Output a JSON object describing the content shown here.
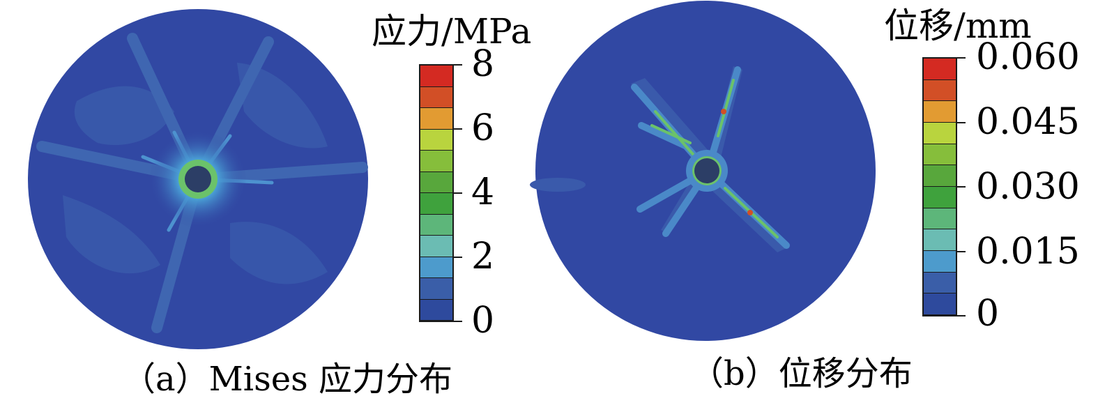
{
  "panels": [
    {
      "id": "a",
      "unit_label": "应力/MPa",
      "caption": "（a）Mises 应力分布",
      "colorbar": {
        "ticks": [
          "8",
          "6",
          "4",
          "2",
          "0"
        ],
        "colors": [
          "#d42a22",
          "#d24f26",
          "#e29b32",
          "#b9d43e",
          "#86be3b",
          "#58a73c",
          "#3fa23d",
          "#5db67a",
          "#6bbcb3",
          "#4d9bcc",
          "#3a5ea8",
          "#2e4a9d"
        ]
      }
    },
    {
      "id": "b",
      "unit_label": "位移/mm",
      "caption": "（b）位移分布",
      "colorbar": {
        "ticks": [
          "0.060",
          "0.045",
          "0.030",
          "0.015",
          "0"
        ],
        "colors": [
          "#d42a22",
          "#d24f26",
          "#e29b32",
          "#b9d43e",
          "#86be3b",
          "#58a73c",
          "#3fa23d",
          "#5db67a",
          "#6bbcb3",
          "#4d9bcc",
          "#3a5ea8",
          "#2e4a9d"
        ]
      }
    }
  ],
  "colors": {
    "disk": "#3148a3",
    "hole": "#2c3e66",
    "crack_light": "#4a89c8",
    "crack_green": "#6bc26a"
  }
}
